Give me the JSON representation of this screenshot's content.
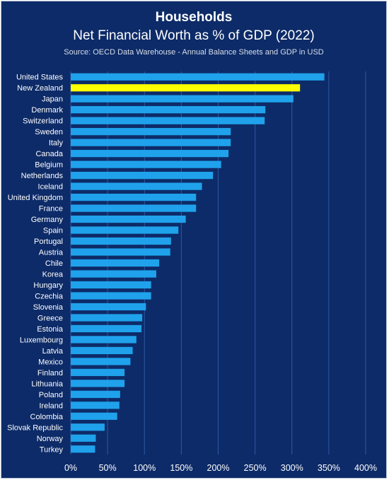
{
  "chart_data": {
    "type": "bar",
    "orientation": "horizontal",
    "title": "Households",
    "subtitle": "Net Financial Worth as % of GDP (2022)",
    "source": "Source: OECD Data Warehouse - Annual Balance Sheets and GDP in USD",
    "categories": [
      "United States",
      "New Zealand",
      "Japan",
      "Denmark",
      "Switzerland",
      "Sweden",
      "Italy",
      "Canada",
      "Belgium",
      "Netherlands",
      "Iceland",
      "United Kingdom",
      "France",
      "Germany",
      "Spain",
      "Portugal",
      "Austria",
      "Chile",
      "Korea",
      "Hungary",
      "Czechia",
      "Slovenia",
      "Greece",
      "Estonia",
      "Luxembourg",
      "Latvia",
      "Mexico",
      "Finland",
      "Lithuania",
      "Poland",
      "Ireland",
      "Colombia",
      "Slovak Republic",
      "Norway",
      "Turkey"
    ],
    "values": [
      344,
      311,
      302,
      264,
      263,
      217,
      217,
      214,
      204,
      193,
      178,
      170,
      170,
      156,
      146,
      136,
      135,
      120,
      116,
      109,
      109,
      102,
      97,
      96,
      89,
      84,
      81,
      73,
      73,
      67,
      66,
      63,
      46,
      34,
      33
    ],
    "highlight": "New Zealand",
    "xlim": [
      0,
      400
    ],
    "x_ticks": [
      "0%",
      "50%",
      "100%",
      "150%",
      "200%",
      "250%",
      "300%",
      "350%",
      "400%"
    ],
    "grid": "vertical",
    "colors": {
      "background": "#0d2b68",
      "bar": "#1fa2eb",
      "highlight": "#ffff00",
      "grid": "#2f57a3"
    }
  }
}
